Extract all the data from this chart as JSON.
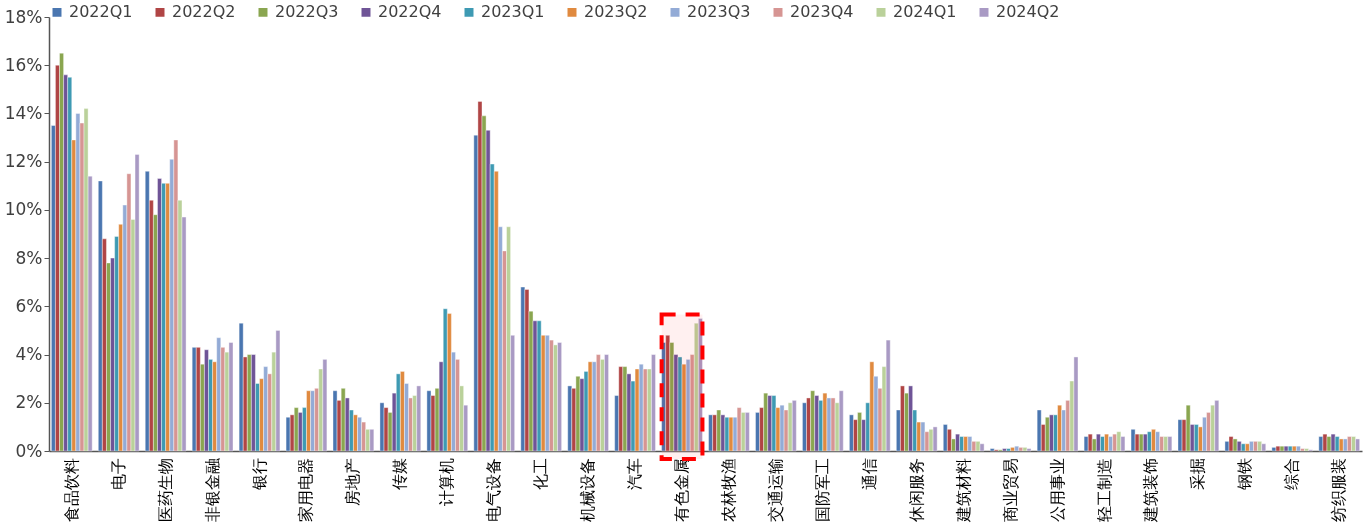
{
  "chart_data": {
    "type": "bar",
    "categories": [
      "食品饮料",
      "电子",
      "医药生物",
      "非银金融",
      "银行",
      "家用电器",
      "房地产",
      "传媒",
      "计算机",
      "电气设备",
      "化工",
      "机械设备",
      "汽车",
      "有色金属",
      "农林牧渔",
      "交通运输",
      "国防军工",
      "通信",
      "休闲服务",
      "建筑材料",
      "商业贸易",
      "公用事业",
      "轻工制造",
      "建筑装饰",
      "采掘",
      "钢铁",
      "综合",
      "纺织服装"
    ],
    "series": [
      {
        "name": "2022Q1",
        "color": "#4a76b0",
        "values": [
          13.5,
          11.2,
          11.6,
          4.3,
          5.3,
          1.4,
          2.5,
          2.0,
          2.5,
          13.1,
          6.8,
          2.7,
          2.3,
          4.5,
          1.5,
          1.6,
          2.0,
          1.5,
          1.7,
          1.1,
          0.1,
          1.7,
          0.6,
          0.9,
          1.3,
          0.4,
          0.15,
          0.6
        ]
      },
      {
        "name": "2022Q2",
        "color": "#b04545",
        "values": [
          16.0,
          8.8,
          10.4,
          4.3,
          3.9,
          1.5,
          2.1,
          1.8,
          2.3,
          14.5,
          6.7,
          2.6,
          3.5,
          4.8,
          1.5,
          1.8,
          2.2,
          1.3,
          2.7,
          0.9,
          0.05,
          1.1,
          0.7,
          0.7,
          1.3,
          0.6,
          0.2,
          0.7
        ]
      },
      {
        "name": "2022Q3",
        "color": "#8aa650",
        "values": [
          16.5,
          7.8,
          9.8,
          3.6,
          4.0,
          1.8,
          2.6,
          1.6,
          2.6,
          13.9,
          5.8,
          3.1,
          3.5,
          4.5,
          1.7,
          2.4,
          2.5,
          1.6,
          2.4,
          0.5,
          0.05,
          1.4,
          0.5,
          0.7,
          1.9,
          0.5,
          0.2,
          0.6
        ]
      },
      {
        "name": "2022Q4",
        "color": "#6f5497",
        "values": [
          15.6,
          8.0,
          11.3,
          4.2,
          4.0,
          1.6,
          2.2,
          2.4,
          3.7,
          13.3,
          5.4,
          3.0,
          3.2,
          4.0,
          1.5,
          2.3,
          2.3,
          1.3,
          2.7,
          0.7,
          0.1,
          1.5,
          0.7,
          0.7,
          1.1,
          0.4,
          0.2,
          0.7
        ]
      },
      {
        "name": "2023Q1",
        "color": "#3e9ab3",
        "values": [
          15.5,
          8.9,
          11.1,
          3.8,
          2.8,
          1.8,
          1.7,
          3.2,
          5.9,
          11.9,
          5.4,
          3.3,
          2.9,
          3.9,
          1.4,
          2.3,
          2.1,
          2.0,
          1.7,
          0.6,
          0.1,
          1.5,
          0.6,
          0.8,
          1.1,
          0.3,
          0.2,
          0.6
        ]
      },
      {
        "name": "2023Q2",
        "color": "#e08a3f",
        "values": [
          12.9,
          9.4,
          11.1,
          3.7,
          3.0,
          2.5,
          1.5,
          3.3,
          5.7,
          11.6,
          4.8,
          3.7,
          3.4,
          3.6,
          1.4,
          1.8,
          2.4,
          3.7,
          1.2,
          0.6,
          0.15,
          1.9,
          0.7,
          0.9,
          1.0,
          0.3,
          0.2,
          0.5
        ]
      },
      {
        "name": "2023Q3",
        "color": "#93abd6",
        "values": [
          14.0,
          10.2,
          12.1,
          4.7,
          3.5,
          2.5,
          1.4,
          2.8,
          4.1,
          9.3,
          4.8,
          3.7,
          3.6,
          3.8,
          1.4,
          1.9,
          2.2,
          3.1,
          1.2,
          0.6,
          0.2,
          1.7,
          0.6,
          0.8,
          1.4,
          0.4,
          0.2,
          0.5
        ]
      },
      {
        "name": "2023Q4",
        "color": "#d69593",
        "values": [
          13.6,
          11.5,
          12.9,
          4.3,
          3.2,
          2.6,
          1.2,
          2.2,
          3.8,
          8.3,
          4.6,
          4.0,
          3.4,
          4.0,
          1.8,
          1.7,
          2.2,
          2.6,
          0.8,
          0.4,
          0.15,
          2.1,
          0.7,
          0.6,
          1.6,
          0.4,
          0.1,
          0.6
        ]
      },
      {
        "name": "2024Q1",
        "color": "#bad19a",
        "values": [
          14.2,
          9.6,
          10.4,
          4.1,
          4.1,
          3.4,
          0.9,
          2.3,
          2.7,
          9.3,
          4.4,
          3.8,
          3.4,
          5.3,
          1.6,
          2.0,
          2.0,
          3.5,
          0.9,
          0.4,
          0.15,
          2.9,
          0.8,
          0.6,
          1.9,
          0.4,
          0.1,
          0.6
        ]
      },
      {
        "name": "2024Q2",
        "color": "#a99ac4",
        "values": [
          11.4,
          12.3,
          9.7,
          4.5,
          5.0,
          3.8,
          0.9,
          2.7,
          1.9,
          4.8,
          4.5,
          4.0,
          4.0,
          5.5,
          1.6,
          2.1,
          2.5,
          4.6,
          1.0,
          0.3,
          0.1,
          3.9,
          0.6,
          0.6,
          2.1,
          0.3,
          0.05,
          0.5
        ]
      }
    ],
    "ylim": [
      0,
      18
    ],
    "yticks": [
      {
        "value": 0,
        "label": "0%"
      },
      {
        "value": 2,
        "label": "2%"
      },
      {
        "value": 4,
        "label": "4%"
      },
      {
        "value": 6,
        "label": "6%"
      },
      {
        "value": 8,
        "label": "8%"
      },
      {
        "value": 10,
        "label": "10%"
      },
      {
        "value": 12,
        "label": "12%"
      },
      {
        "value": 14,
        "label": "14%"
      },
      {
        "value": 16,
        "label": "16%"
      },
      {
        "value": 18,
        "label": "18%"
      }
    ],
    "bands": [
      {
        "axis": "x",
        "from": "有色金属",
        "to": "有色金属",
        "color": "#ff0000"
      }
    ],
    "legend": "top",
    "grid": false
  }
}
